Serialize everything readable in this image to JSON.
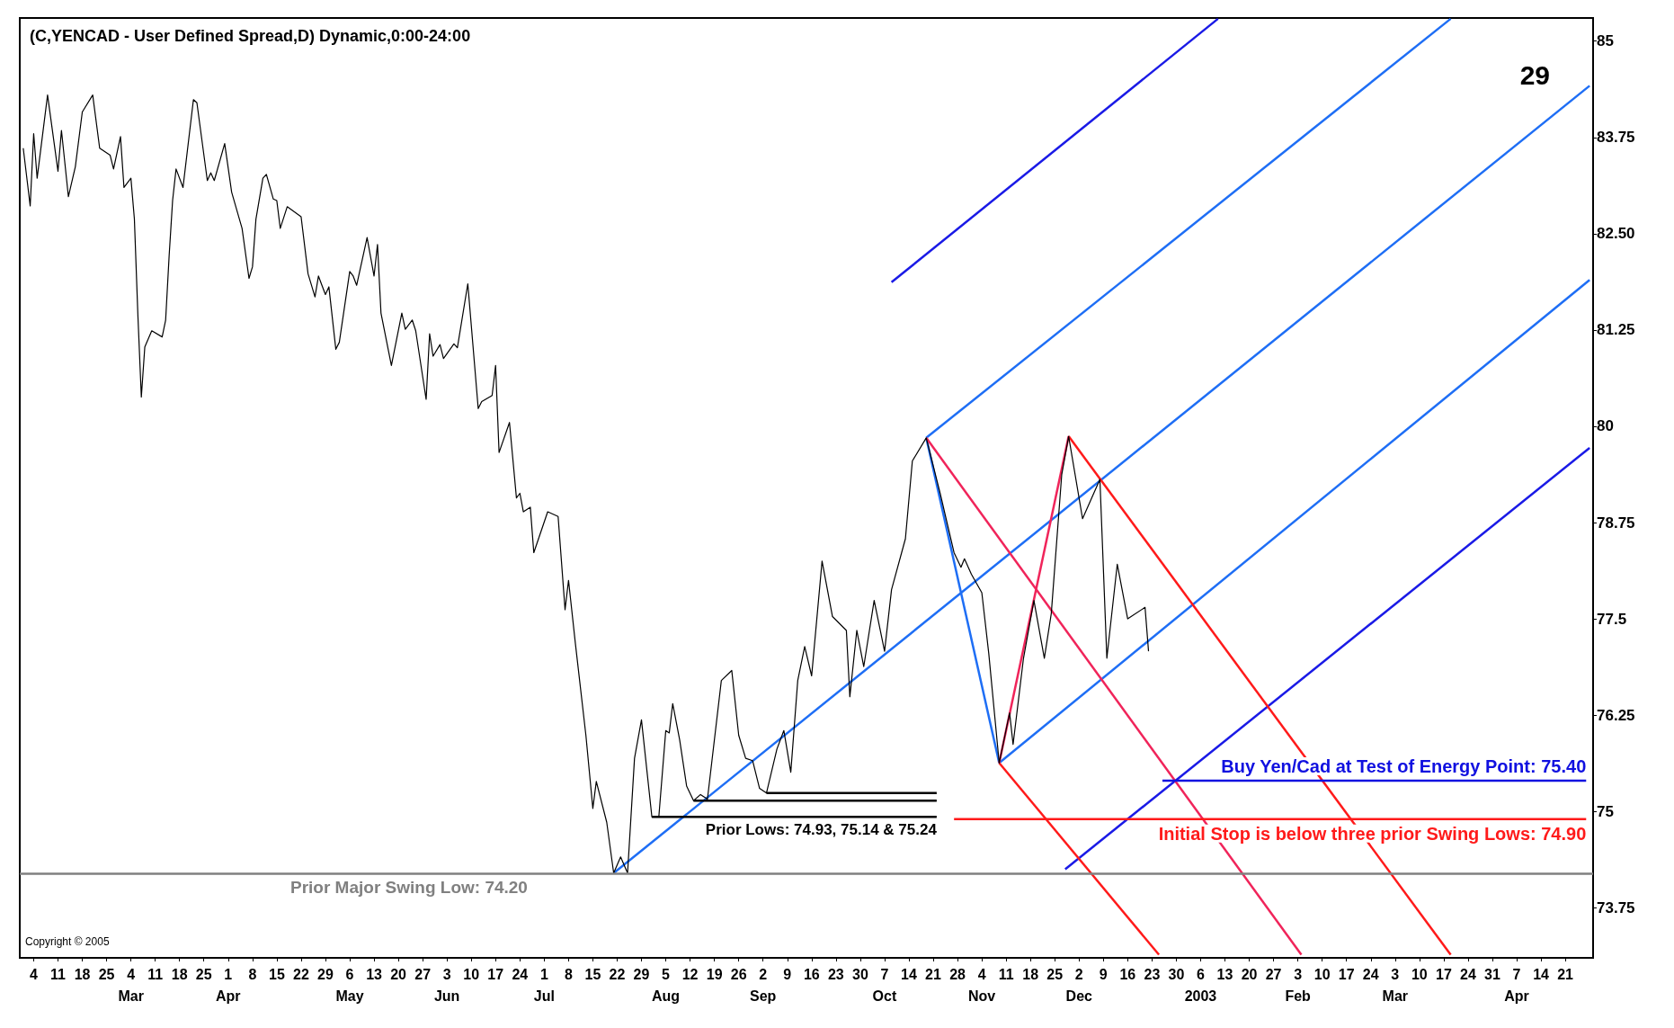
{
  "chart_data": {
    "type": "line",
    "title": "(C,YENCAD - User Defined Spread,D) Dynamic,0:00-24:00",
    "marker": "none",
    "xlim": [
      "2002-01-31",
      "2003-04-29"
    ],
    "ylim": [
      73.1,
      85.3
    ],
    "xticks": [
      {
        "value": "2002-02-04",
        "label": "4"
      },
      {
        "value": "2002-02-11",
        "label": "11"
      },
      {
        "value": "2002-02-18",
        "label": "18"
      },
      {
        "value": "2002-02-25",
        "label": "25"
      },
      {
        "value": "2002-03-04",
        "label": "4\nMar"
      },
      {
        "value": "2002-03-11",
        "label": "11"
      },
      {
        "value": "2002-03-18",
        "label": "18"
      },
      {
        "value": "2002-03-25",
        "label": "25"
      },
      {
        "value": "2002-04-01",
        "label": "1\nApr"
      },
      {
        "value": "2002-04-08",
        "label": "8"
      },
      {
        "value": "2002-04-15",
        "label": "15"
      },
      {
        "value": "2002-04-22",
        "label": "22"
      },
      {
        "value": "2002-04-29",
        "label": "29"
      },
      {
        "value": "2002-05-06",
        "label": "6\nMay"
      },
      {
        "value": "2002-05-13",
        "label": "13"
      },
      {
        "value": "2002-05-20",
        "label": "20"
      },
      {
        "value": "2002-05-27",
        "label": "27"
      },
      {
        "value": "2002-06-03",
        "label": "3\nJun"
      },
      {
        "value": "2002-06-10",
        "label": "10"
      },
      {
        "value": "2002-06-17",
        "label": "17"
      },
      {
        "value": "2002-06-24",
        "label": "24"
      },
      {
        "value": "2002-07-01",
        "label": "1\nJul"
      },
      {
        "value": "2002-07-08",
        "label": "8"
      },
      {
        "value": "2002-07-15",
        "label": "15"
      },
      {
        "value": "2002-07-22",
        "label": "22"
      },
      {
        "value": "2002-07-29",
        "label": "29"
      },
      {
        "value": "2002-08-05",
        "label": "5\nAug"
      },
      {
        "value": "2002-08-12",
        "label": "12"
      },
      {
        "value": "2002-08-19",
        "label": "19"
      },
      {
        "value": "2002-08-26",
        "label": "26"
      },
      {
        "value": "2002-09-02",
        "label": "2\nSep"
      },
      {
        "value": "2002-09-09",
        "label": "9"
      },
      {
        "value": "2002-09-16",
        "label": "16"
      },
      {
        "value": "2002-09-23",
        "label": "23"
      },
      {
        "value": "2002-09-30",
        "label": "30"
      },
      {
        "value": "2002-10-07",
        "label": "7\nOct"
      },
      {
        "value": "2002-10-14",
        "label": "14"
      },
      {
        "value": "2002-10-21",
        "label": "21"
      },
      {
        "value": "2002-10-28",
        "label": "28"
      },
      {
        "value": "2002-11-04",
        "label": "4\nNov"
      },
      {
        "value": "2002-11-11",
        "label": "11"
      },
      {
        "value": "2002-11-18",
        "label": "18"
      },
      {
        "value": "2002-11-25",
        "label": "25"
      },
      {
        "value": "2002-12-02",
        "label": "2\nDec"
      },
      {
        "value": "2002-12-09",
        "label": "9"
      },
      {
        "value": "2002-12-16",
        "label": "16"
      },
      {
        "value": "2002-12-23",
        "label": "23"
      },
      {
        "value": "2002-12-30",
        "label": "30"
      },
      {
        "value": "2003-01-06",
        "label": "6\n2003"
      },
      {
        "value": "2003-01-13",
        "label": "13"
      },
      {
        "value": "2003-01-20",
        "label": "20"
      },
      {
        "value": "2003-01-27",
        "label": "27"
      },
      {
        "value": "2003-02-03",
        "label": "3\nFeb"
      },
      {
        "value": "2003-02-10",
        "label": "10"
      },
      {
        "value": "2003-02-17",
        "label": "17"
      },
      {
        "value": "2003-02-24",
        "label": "24"
      },
      {
        "value": "2003-03-03",
        "label": "3\nMar"
      },
      {
        "value": "2003-03-10",
        "label": "10"
      },
      {
        "value": "2003-03-17",
        "label": "17"
      },
      {
        "value": "2003-03-24",
        "label": "24"
      },
      {
        "value": "2003-03-31",
        "label": "31"
      },
      {
        "value": "2003-04-07",
        "label": "7\nApr"
      },
      {
        "value": "2003-04-14",
        "label": "14"
      },
      {
        "value": "2003-04-21",
        "label": "21"
      }
    ],
    "yticks": [
      73.75,
      75,
      76.25,
      77.5,
      78.75,
      80,
      81.25,
      {
        "value": 82.5,
        "label": "82.50"
      },
      83.75,
      85
    ],
    "series": [
      {
        "color": "#000000",
        "x": [
          "2002-02-01",
          "2002-02-03",
          "2002-02-04",
          "2002-02-05",
          "2002-02-08",
          "2002-02-11",
          "2002-02-12",
          "2002-02-14",
          "2002-02-16",
          "2002-02-18",
          "2002-02-21",
          "2002-02-23",
          "2002-02-26",
          "2002-02-27",
          "2002-03-01",
          "2002-03-02",
          "2002-03-04",
          "2002-03-05",
          "2002-03-06",
          "2002-03-07",
          "2002-03-08",
          "2002-03-10",
          "2002-03-13",
          "2002-03-14",
          "2002-03-15",
          "2002-03-16",
          "2002-03-17",
          "2002-03-19",
          "2002-03-22",
          "2002-03-23",
          "2002-03-26",
          "2002-03-27",
          "2002-03-28",
          "2002-03-31",
          "2002-04-02",
          "2002-04-05",
          "2002-04-07",
          "2002-04-08",
          "2002-04-09",
          "2002-04-11",
          "2002-04-12",
          "2002-04-14",
          "2002-04-15",
          "2002-04-16",
          "2002-04-18",
          "2002-04-22",
          "2002-04-24",
          "2002-04-26",
          "2002-04-27",
          "2002-04-29",
          "2002-04-30",
          "2002-05-02",
          "2002-05-03",
          "2002-05-06",
          "2002-05-07",
          "2002-05-08",
          "2002-05-11",
          "2002-05-13",
          "2002-05-14",
          "2002-05-15",
          "2002-05-18",
          "2002-05-21",
          "2002-05-22",
          "2002-05-24",
          "2002-05-25",
          "2002-05-28",
          "2002-05-29",
          "2002-05-30",
          "2002-06-01",
          "2002-06-02",
          "2002-06-05",
          "2002-06-06",
          "2002-06-09",
          "2002-06-12",
          "2002-06-13",
          "2002-06-16",
          "2002-06-17",
          "2002-06-18",
          "2002-06-21",
          "2002-06-23",
          "2002-06-24",
          "2002-06-25",
          "2002-06-27",
          "2002-06-28",
          "2002-07-02",
          "2002-07-05",
          "2002-07-07",
          "2002-07-08",
          "2002-07-10",
          "2002-07-13",
          "2002-07-15",
          "2002-07-16",
          "2002-07-19",
          "2002-07-21",
          "2002-07-23",
          "2002-07-25",
          "2002-07-27",
          "2002-07-29",
          "2002-08-01",
          "2002-08-03",
          "2002-08-05",
          "2002-08-06",
          "2002-08-07",
          "2002-08-09",
          "2002-08-11",
          "2002-08-13",
          "2002-08-15",
          "2002-08-17",
          "2002-08-21",
          "2002-08-24",
          "2002-08-26",
          "2002-08-28",
          "2002-08-30",
          "2002-09-01",
          "2002-09-03",
          "2002-09-06",
          "2002-09-08",
          "2002-09-10",
          "2002-09-12",
          "2002-09-14",
          "2002-09-16",
          "2002-09-19",
          "2002-09-22",
          "2002-09-26",
          "2002-09-27",
          "2002-09-29",
          "2002-10-01",
          "2002-10-04",
          "2002-10-07",
          "2002-10-09",
          "2002-10-13",
          "2002-10-15",
          "2002-10-19",
          "2002-10-22",
          "2002-10-23",
          "2002-10-27",
          "2002-10-29",
          "2002-10-30",
          "2002-11-01",
          "2002-11-04",
          "2002-11-06",
          "2002-11-09",
          "2002-11-12",
          "2002-11-13",
          "2002-11-16",
          "2002-11-19",
          "2002-11-22",
          "2002-11-24",
          "2002-11-27",
          "2002-11-29",
          "2002-12-03",
          "2002-12-08",
          "2002-12-10",
          "2002-12-13",
          "2002-12-16",
          "2002-12-21",
          "2002-12-22"
        ],
        "values": [
          83.61,
          82.86,
          83.8,
          83.22,
          84.3,
          83.31,
          83.84,
          82.98,
          83.37,
          84.08,
          84.3,
          83.61,
          83.52,
          83.34,
          83.76,
          83.1,
          83.22,
          82.69,
          81.45,
          80.38,
          81.03,
          81.24,
          81.16,
          81.38,
          82.21,
          82.93,
          83.34,
          83.1,
          84.24,
          84.2,
          83.19,
          83.29,
          83.19,
          83.67,
          83.04,
          82.57,
          81.92,
          82.07,
          82.69,
          83.22,
          83.27,
          82.95,
          82.93,
          82.57,
          82.85,
          82.72,
          81.98,
          81.68,
          81.95,
          81.71,
          81.81,
          81.0,
          81.09,
          82.01,
          81.95,
          81.83,
          82.45,
          81.95,
          82.36,
          81.47,
          80.79,
          81.47,
          81.26,
          81.38,
          81.24,
          80.35,
          81.2,
          80.91,
          81.06,
          80.88,
          81.07,
          81.02,
          81.85,
          80.23,
          80.32,
          80.4,
          80.79,
          79.66,
          80.05,
          79.07,
          79.13,
          78.89,
          78.95,
          78.36,
          78.89,
          78.83,
          77.62,
          78.0,
          77.17,
          75.99,
          75.04,
          75.39,
          74.86,
          74.2,
          74.41,
          74.2,
          75.69,
          76.19,
          74.93,
          74.93,
          76.05,
          76.02,
          76.4,
          75.93,
          75.33,
          75.14,
          75.22,
          75.16,
          76.7,
          76.83,
          75.99,
          75.69,
          75.66,
          75.3,
          75.24,
          75.81,
          76.05,
          75.51,
          76.7,
          77.14,
          76.76,
          78.25,
          77.53,
          77.35,
          76.49,
          77.35,
          76.88,
          77.74,
          77.08,
          77.88,
          78.54,
          79.55,
          79.85,
          79.31,
          79.13,
          78.36,
          78.17,
          78.28,
          78.08,
          77.84,
          77.05,
          75.63,
          76.28,
          75.87,
          76.99,
          77.74,
          76.99,
          77.57,
          79.37,
          79.87,
          78.8,
          79.31,
          76.99,
          78.21,
          77.5,
          77.65,
          77.08
        ]
      },
      {
        "color": "#1a1ae6",
        "x": [
          "2002-10-09",
          "2003-01-11"
        ],
        "values": [
          81.87,
          85.29
        ]
      },
      {
        "color": "#1e6ef5",
        "x": [
          "2002-10-19",
          "2003-03-19"
        ],
        "values": [
          79.85,
          85.29
        ]
      },
      {
        "color": "#1e6ef5",
        "x": [
          "2002-07-21",
          "2003-04-28"
        ],
        "values": [
          74.2,
          84.42
        ]
      },
      {
        "color": "#1e6ef5",
        "x": [
          "2002-11-09",
          "2003-04-28"
        ],
        "values": [
          75.63,
          81.9
        ]
      },
      {
        "color": "#1a1ae6",
        "x": [
          "2002-11-28",
          "2003-04-28"
        ],
        "values": [
          74.25,
          79.72
        ]
      },
      {
        "color": "#1e6ef5",
        "x": [
          "2002-10-19",
          "2002-11-09"
        ],
        "values": [
          79.85,
          75.63
        ]
      },
      {
        "color": "#f0245a",
        "x": [
          "2002-10-19",
          "2003-02-04"
        ],
        "values": [
          79.85,
          73.14
        ]
      },
      {
        "color": "#ff1a1a",
        "x": [
          "2002-11-09",
          "2002-12-25"
        ],
        "values": [
          75.63,
          73.14
        ]
      },
      {
        "color": "#ff1a1a",
        "x": [
          "2002-11-29",
          "2003-03-19"
        ],
        "values": [
          79.87,
          73.14
        ]
      },
      {
        "color": "#f0245a",
        "x": [
          "2002-11-09",
          "2002-11-29"
        ],
        "values": [
          75.63,
          79.87
        ]
      },
      {
        "color": "#000000",
        "x": [
          "2002-08-01",
          "2002-10-22"
        ],
        "values": [
          74.93,
          74.93
        ]
      },
      {
        "color": "#000000",
        "x": [
          "2002-08-13",
          "2002-10-22"
        ],
        "values": [
          75.14,
          75.14
        ]
      },
      {
        "color": "#000000",
        "x": [
          "2002-09-03",
          "2002-10-22"
        ],
        "values": [
          75.24,
          75.24
        ]
      },
      {
        "color": "#1010e0",
        "x": [
          "2002-12-26",
          "2003-04-27"
        ],
        "values": [
          75.4,
          75.4
        ]
      },
      {
        "color": "#ff1a1a",
        "x": [
          "2002-10-27",
          "2003-04-27"
        ],
        "values": [
          74.9,
          74.9
        ]
      }
    ],
    "ref_lines": [
      {
        "axis": "y",
        "value": 74.2,
        "label": "Prior Major Swing Low: 74.20",
        "color": "#808080"
      }
    ],
    "annotations": [
      "29",
      "Copyright © 2005",
      {
        "text": "Prior Lows: 74.93, 75.14 & 75.24",
        "x": "2002-10-22",
        "y": 74.93
      },
      {
        "text": "Buy Yen/Cad at Test of Energy Point: 75.40",
        "x": "2003-04-27",
        "y": 75.4
      },
      {
        "text": "Initial Stop is below three prior Swing Lows: 74.90",
        "x": "2003-04-27",
        "y": 74.9
      }
    ]
  }
}
